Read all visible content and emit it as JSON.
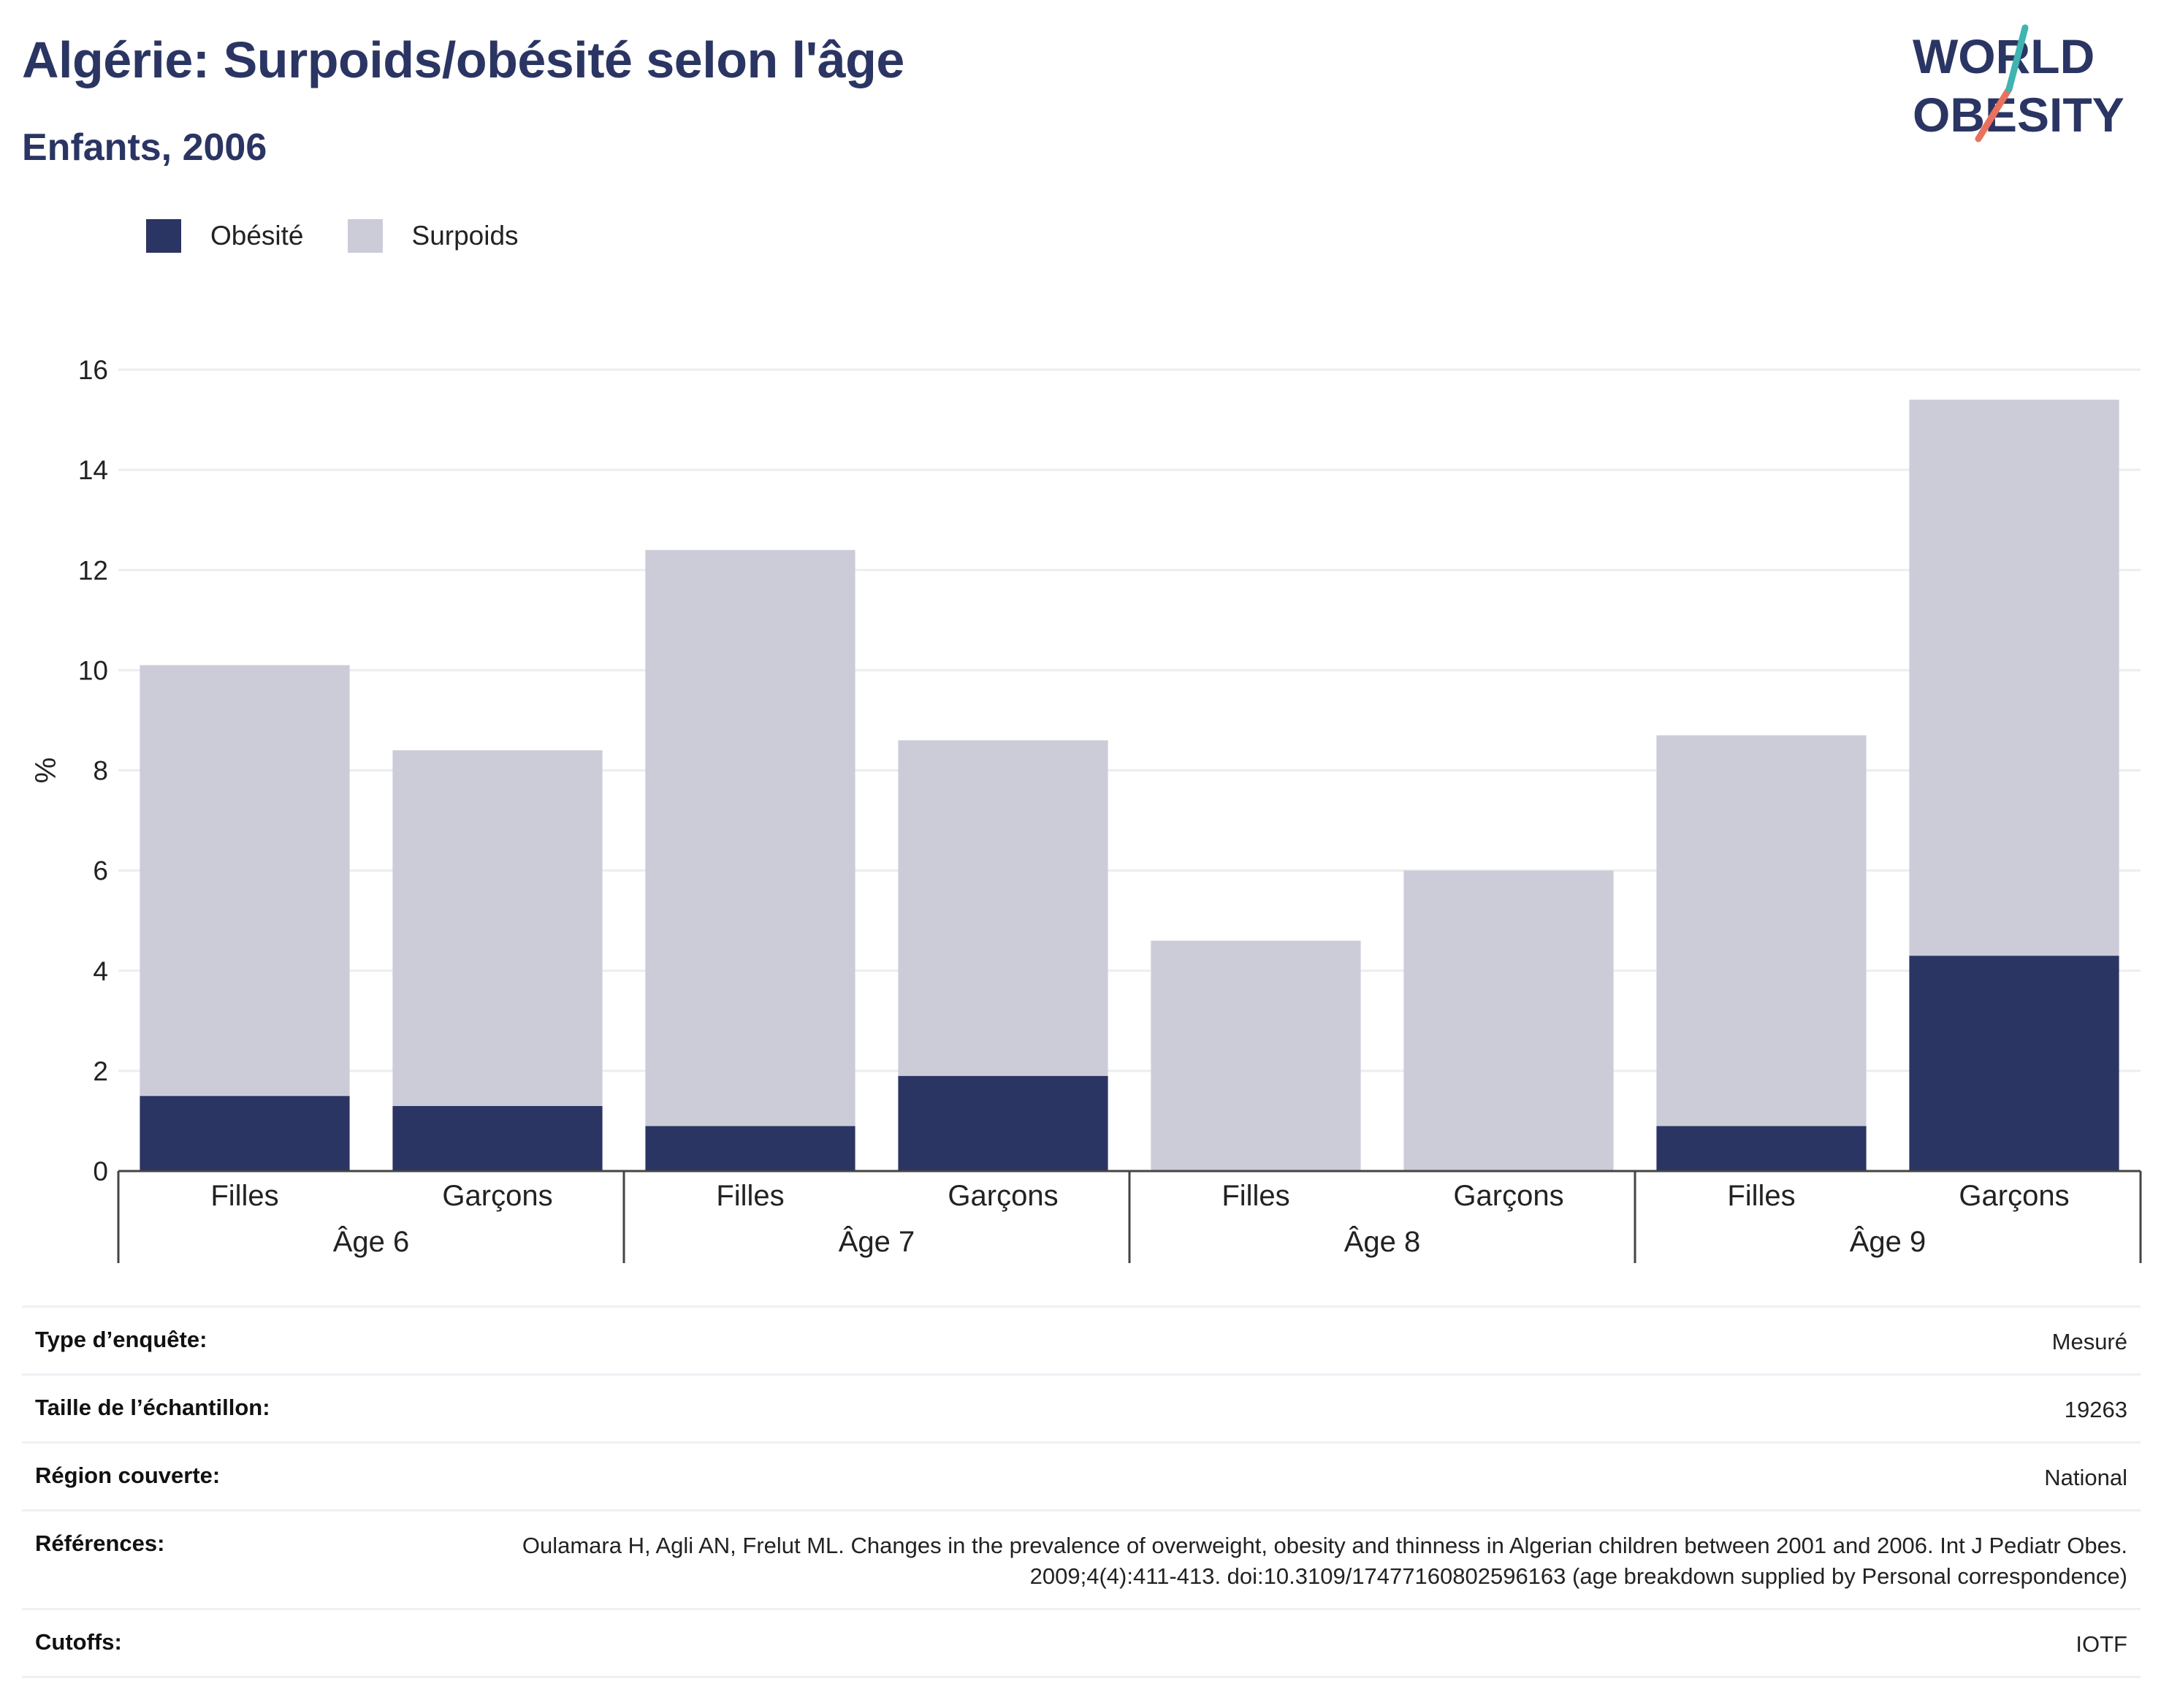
{
  "title": "Algérie: Surpoids/obésité selon l'âge",
  "subtitle": "Enfants, 2006",
  "logo": {
    "line1": "WORLD",
    "line2": "OBESITY",
    "colors": {
      "text": "#2b3563",
      "slash_top": "#3fb4b1",
      "slash_bottom": "#e8715f"
    }
  },
  "legend": [
    {
      "label": "Obésité",
      "color": "#2b3563"
    },
    {
      "label": "Surpoids",
      "color": "#cbccd8"
    }
  ],
  "chart_data": {
    "type": "bar",
    "stacked": true,
    "ylabel": "%",
    "ylim": [
      0,
      16
    ],
    "yticks": [
      0,
      2,
      4,
      6,
      8,
      10,
      12,
      14,
      16
    ],
    "grid": true,
    "groups": [
      "Âge 6",
      "Âge 7",
      "Âge 8",
      "Âge 9"
    ],
    "categories": [
      "Filles",
      "Garçons",
      "Filles",
      "Garçons",
      "Filles",
      "Garçons",
      "Filles",
      "Garçons"
    ],
    "series": [
      {
        "name": "Obésité",
        "color": "#2b3563",
        "values": [
          1.5,
          1.3,
          0.9,
          1.9,
          0,
          0,
          0.9,
          4.3
        ]
      },
      {
        "name": "Surpoids",
        "color": "#cbccd8",
        "values": [
          8.6,
          7.1,
          11.5,
          6.7,
          4.6,
          6.0,
          7.8,
          11.1
        ]
      }
    ]
  },
  "details": [
    {
      "label": "Type d’enquête:",
      "value": "Mesuré"
    },
    {
      "label": "Taille de l’échantillon:",
      "value": "19263"
    },
    {
      "label": "Région couverte:",
      "value": "National"
    },
    {
      "label": "Références:",
      "value": "Oulamara H, Agli AN, Frelut ML. Changes in the prevalence of overweight, obesity and thinness in Algerian children between 2001 and 2006. Int J Pediatr Obes. 2009;4(4):411-413. doi:10.3109/17477160802596163 (age breakdown supplied by Personal correspondence)"
    },
    {
      "label": "Cutoffs:",
      "value": "IOTF"
    }
  ]
}
